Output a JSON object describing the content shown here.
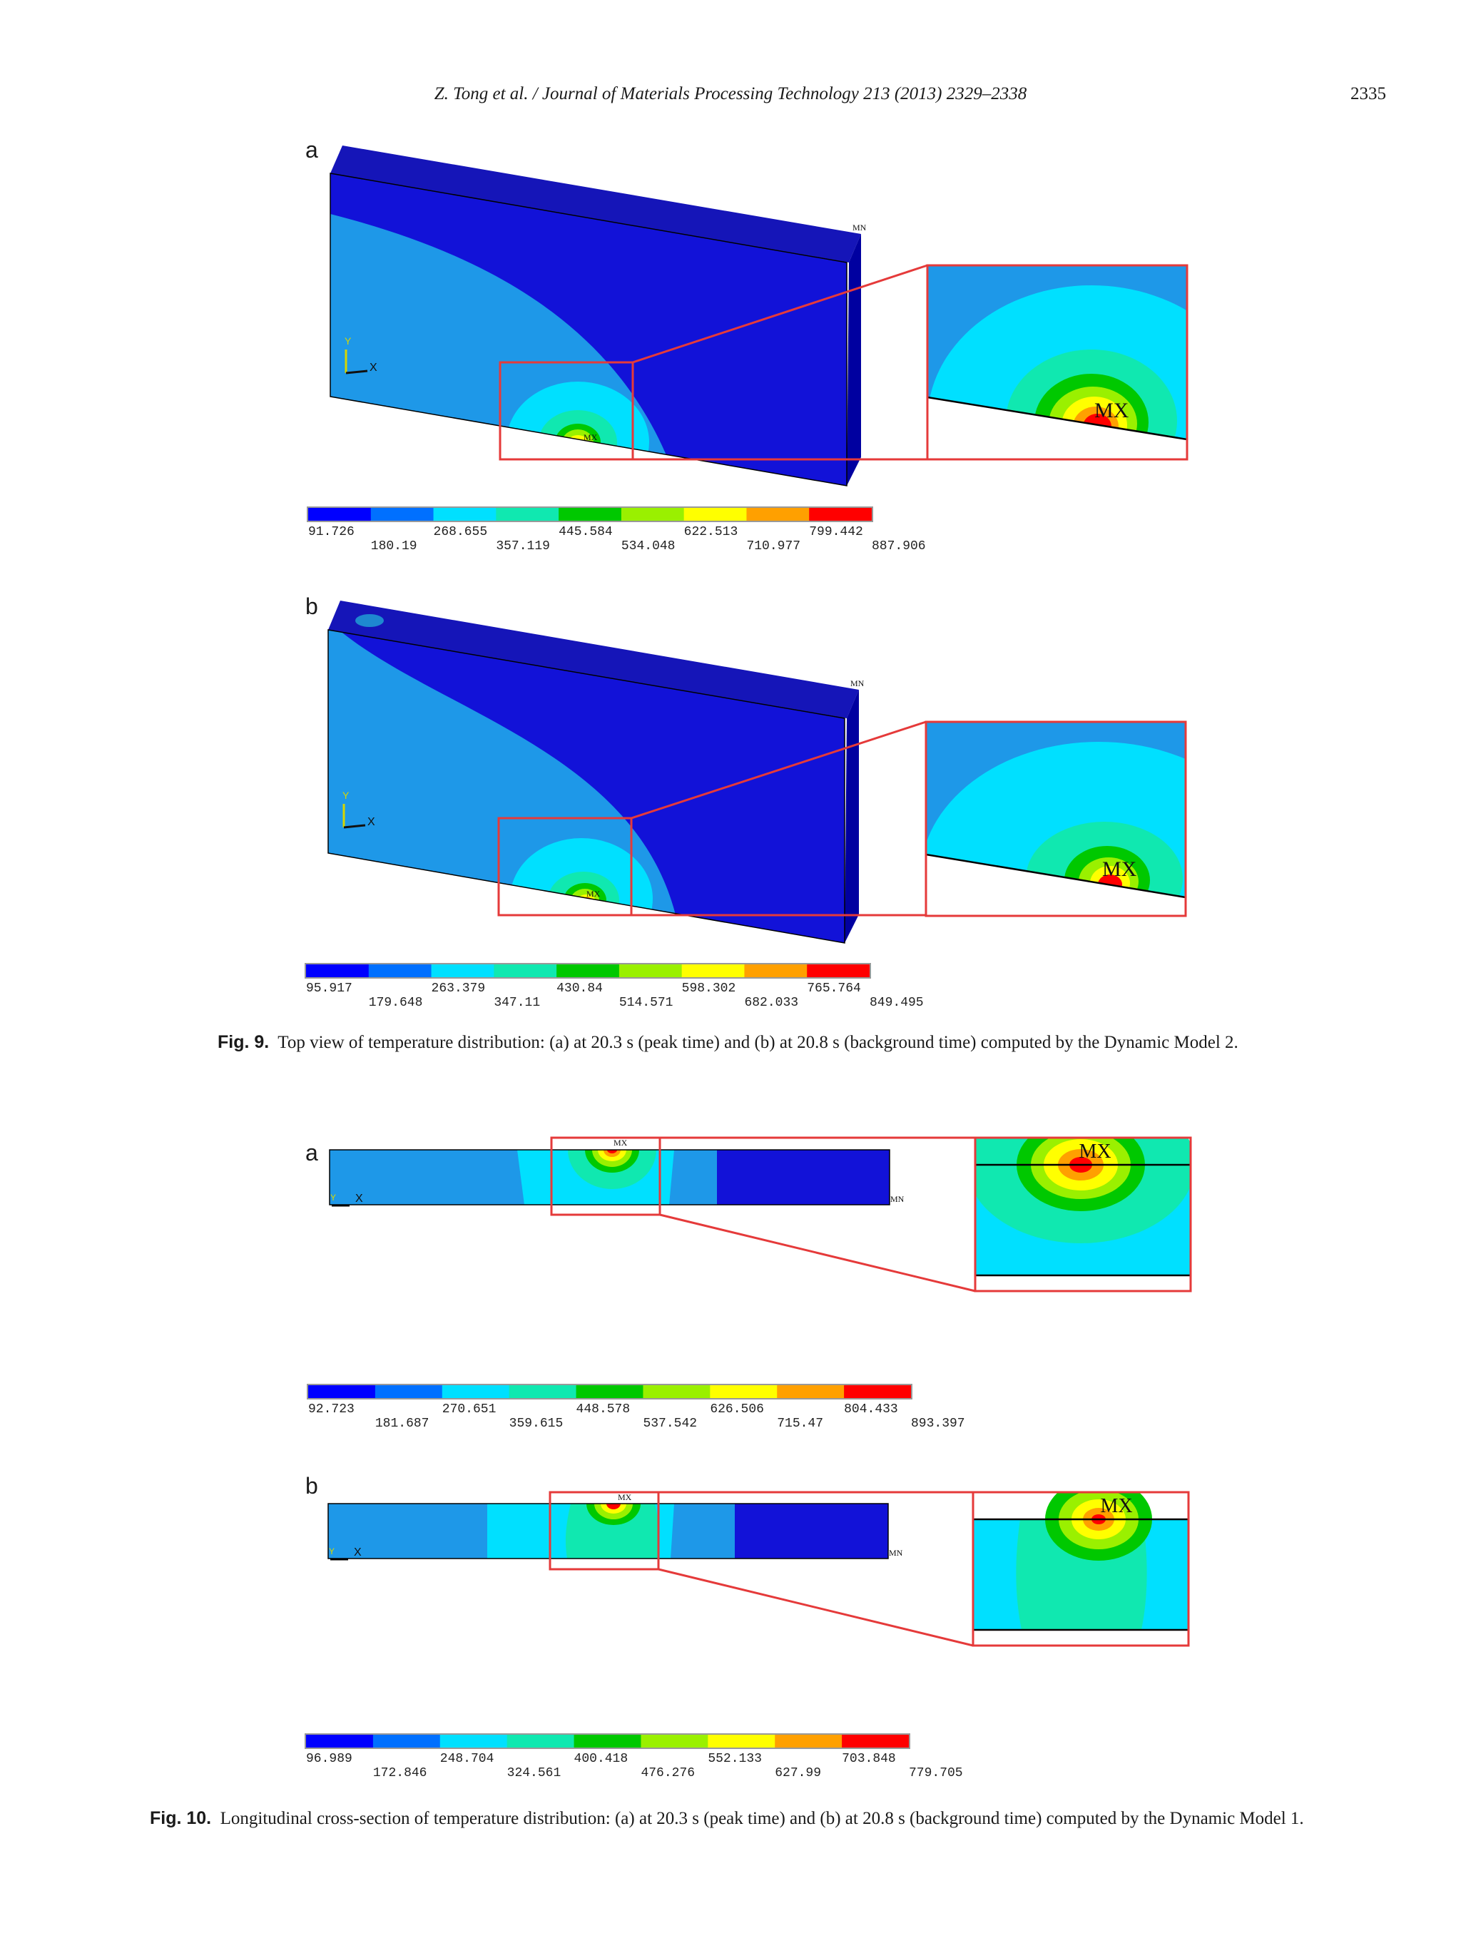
{
  "header": {
    "journal": "Z. Tong et al. / Journal of Materials Processing Technology 213 (2013) 2329–2338",
    "page": "2335"
  },
  "fig9": {
    "caption_label": "Fig. 9.",
    "caption_text": "Top view of temperature distribution: (a) at 20.3 s (peak time) and (b) at 20.8 s (background time) computed by the Dynamic Model 2.",
    "panels": [
      {
        "letter": "a",
        "colorbar_top": [
          "91.726",
          "268.655",
          "445.584",
          "622.513",
          "799.442"
        ],
        "colorbar_bottom": [
          "180.19",
          "357.119",
          "534.048",
          "710.977",
          "887.906"
        ],
        "axis_y": "Y",
        "axis_x": "X",
        "mx_label": "MX",
        "mn_label": "MN"
      },
      {
        "letter": "b",
        "colorbar_top": [
          "95.917",
          "263.379",
          "430.84",
          "598.302",
          "765.764"
        ],
        "colorbar_bottom": [
          "179.648",
          "347.11",
          "514.571",
          "682.033",
          "849.495"
        ],
        "axis_y": "Y",
        "axis_x": "X",
        "mx_label": "MX",
        "mn_label": "MN"
      }
    ]
  },
  "fig10": {
    "caption_label": "Fig. 10.",
    "caption_text": "Longitudinal cross-section of temperature distribution: (a) at 20.3 s (peak time) and (b) at 20.8 s (background time) computed by the Dynamic Model 1.",
    "panels": [
      {
        "letter": "a",
        "colorbar_top": [
          "92.723",
          "270.651",
          "448.578",
          "626.506",
          "804.433"
        ],
        "colorbar_bottom": [
          "181.687",
          "359.615",
          "537.542",
          "715.47",
          "893.397"
        ],
        "axis_y": "Y",
        "axis_x": "X",
        "mx_label": "MX",
        "mn_label": "MN"
      },
      {
        "letter": "b",
        "colorbar_top": [
          "96.989",
          "248.704",
          "400.418",
          "552.133",
          "703.848"
        ],
        "colorbar_bottom": [
          "172.846",
          "324.561",
          "476.276",
          "627.99",
          "779.705"
        ],
        "axis_y": "Y",
        "axis_x": "X",
        "mx_label": "MX",
        "mn_label": "MN"
      }
    ]
  },
  "colors": {
    "scale": [
      "#0000ff",
      "#0070ff",
      "#00e0ff",
      "#10e8b0",
      "#00c800",
      "#9af000",
      "#ffff00",
      "#ffa000",
      "#ff0000"
    ],
    "highlight": "#e53a3a",
    "plate_front": "#1010d8",
    "plate_top": "#1818c0",
    "plate_side": "#0000a8",
    "warm_region": "#1e9aea"
  }
}
